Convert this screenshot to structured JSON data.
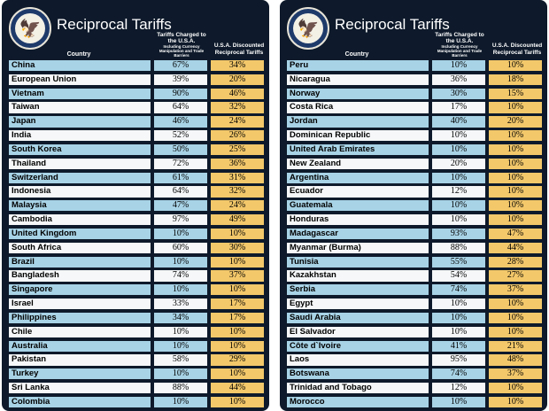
{
  "title": "Reciprocal Tariffs",
  "headers": {
    "country": "Country",
    "charged_main": "Tariffs Charged to the U.S.A.",
    "charged_sub": "Including Currency Manipulation and Trade Barriers",
    "discounted": "U.S.A. Discounted Reciprocal Tariffs"
  },
  "colors": {
    "panel_bg": "#0e1a2b",
    "row_blue": "#a8d3e6",
    "row_white": "#f5f7f8",
    "discounted_bg": "#f3c86a"
  },
  "icons": {
    "seal": "presidential-seal-icon"
  },
  "left_rows": [
    {
      "country": "China",
      "charged": "67%",
      "discounted": "34%"
    },
    {
      "country": "European Union",
      "charged": "39%",
      "discounted": "20%"
    },
    {
      "country": "Vietnam",
      "charged": "90%",
      "discounted": "46%"
    },
    {
      "country": "Taiwan",
      "charged": "64%",
      "discounted": "32%"
    },
    {
      "country": "Japan",
      "charged": "46%",
      "discounted": "24%"
    },
    {
      "country": "India",
      "charged": "52%",
      "discounted": "26%"
    },
    {
      "country": "South Korea",
      "charged": "50%",
      "discounted": "25%"
    },
    {
      "country": "Thailand",
      "charged": "72%",
      "discounted": "36%"
    },
    {
      "country": "Switzerland",
      "charged": "61%",
      "discounted": "31%"
    },
    {
      "country": "Indonesia",
      "charged": "64%",
      "discounted": "32%"
    },
    {
      "country": "Malaysia",
      "charged": "47%",
      "discounted": "24%"
    },
    {
      "country": "Cambodia",
      "charged": "97%",
      "discounted": "49%"
    },
    {
      "country": "United Kingdom",
      "charged": "10%",
      "discounted": "10%"
    },
    {
      "country": "South Africa",
      "charged": "60%",
      "discounted": "30%"
    },
    {
      "country": "Brazil",
      "charged": "10%",
      "discounted": "10%"
    },
    {
      "country": "Bangladesh",
      "charged": "74%",
      "discounted": "37%"
    },
    {
      "country": "Singapore",
      "charged": "10%",
      "discounted": "10%"
    },
    {
      "country": "Israel",
      "charged": "33%",
      "discounted": "17%"
    },
    {
      "country": "Philippines",
      "charged": "34%",
      "discounted": "17%"
    },
    {
      "country": "Chile",
      "charged": "10%",
      "discounted": "10%"
    },
    {
      "country": "Australia",
      "charged": "10%",
      "discounted": "10%"
    },
    {
      "country": "Pakistan",
      "charged": "58%",
      "discounted": "29%"
    },
    {
      "country": "Turkey",
      "charged": "10%",
      "discounted": "10%"
    },
    {
      "country": "Sri Lanka",
      "charged": "88%",
      "discounted": "44%"
    },
    {
      "country": "Colombia",
      "charged": "10%",
      "discounted": "10%"
    }
  ],
  "right_rows": [
    {
      "country": "Peru",
      "charged": "10%",
      "discounted": "10%"
    },
    {
      "country": "Nicaragua",
      "charged": "36%",
      "discounted": "18%"
    },
    {
      "country": "Norway",
      "charged": "30%",
      "discounted": "15%"
    },
    {
      "country": "Costa Rica",
      "charged": "17%",
      "discounted": "10%"
    },
    {
      "country": "Jordan",
      "charged": "40%",
      "discounted": "20%"
    },
    {
      "country": "Dominican Republic",
      "charged": "10%",
      "discounted": "10%"
    },
    {
      "country": "United Arab Emirates",
      "charged": "10%",
      "discounted": "10%"
    },
    {
      "country": "New Zealand",
      "charged": "20%",
      "discounted": "10%"
    },
    {
      "country": "Argentina",
      "charged": "10%",
      "discounted": "10%"
    },
    {
      "country": "Ecuador",
      "charged": "12%",
      "discounted": "10%"
    },
    {
      "country": "Guatemala",
      "charged": "10%",
      "discounted": "10%"
    },
    {
      "country": "Honduras",
      "charged": "10%",
      "discounted": "10%"
    },
    {
      "country": "Madagascar",
      "charged": "93%",
      "discounted": "47%"
    },
    {
      "country": "Myanmar (Burma)",
      "charged": "88%",
      "discounted": "44%"
    },
    {
      "country": "Tunisia",
      "charged": "55%",
      "discounted": "28%"
    },
    {
      "country": "Kazakhstan",
      "charged": "54%",
      "discounted": "27%"
    },
    {
      "country": "Serbia",
      "charged": "74%",
      "discounted": "37%"
    },
    {
      "country": "Egypt",
      "charged": "10%",
      "discounted": "10%"
    },
    {
      "country": "Saudi Arabia",
      "charged": "10%",
      "discounted": "10%"
    },
    {
      "country": "El Salvador",
      "charged": "10%",
      "discounted": "10%"
    },
    {
      "country": "Côte d`Ivoire",
      "charged": "41%",
      "discounted": "21%"
    },
    {
      "country": "Laos",
      "charged": "95%",
      "discounted": "48%"
    },
    {
      "country": "Botswana",
      "charged": "74%",
      "discounted": "37%"
    },
    {
      "country": "Trinidad and Tobago",
      "charged": "12%",
      "discounted": "10%"
    },
    {
      "country": "Morocco",
      "charged": "10%",
      "discounted": "10%"
    }
  ]
}
